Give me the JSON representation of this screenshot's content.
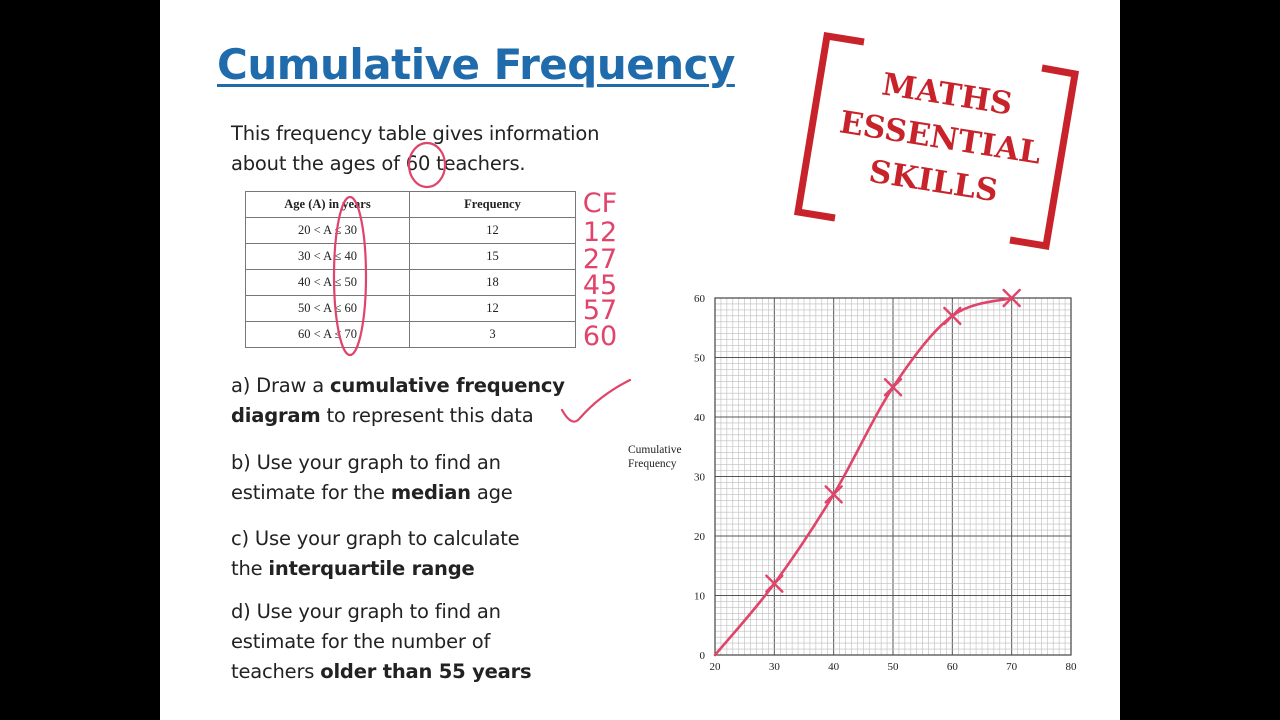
{
  "title": "Cumulative Frequency",
  "intro": {
    "line1": "This frequency table gives information",
    "line2a": "about the ages of ",
    "line2_num": "60",
    "line2b": " teachers."
  },
  "table": {
    "headers": [
      "Age (A) in years",
      "Frequency"
    ],
    "rows": [
      [
        "20 < A ≤ 30",
        "12"
      ],
      [
        "30 < A ≤ 40",
        "15"
      ],
      [
        "40 < A ≤ 50",
        "18"
      ],
      [
        "50 < A ≤ 60",
        "12"
      ],
      [
        "60 < A ≤ 70",
        "3"
      ]
    ]
  },
  "handwritten": {
    "cf_header": "CF",
    "cf_values": [
      "12",
      "27",
      "45",
      "57",
      "60"
    ],
    "color": "#e0446a"
  },
  "questions": {
    "a": {
      "pre": "a) Draw a ",
      "bold": "cumulative frequency",
      "bold2": "diagram",
      "post": " to represent this data"
    },
    "b": {
      "line1": "b) Use your graph to find an",
      "pre": "estimate for the ",
      "bold": "median",
      "post": " age"
    },
    "c": {
      "line1": "c) Use your graph to calculate",
      "pre": "the ",
      "bold": "interquartile range"
    },
    "d": {
      "line1": "d) Use your graph to find an",
      "line2": "estimate for the number of",
      "pre": "teachers ",
      "bold": "older than 55 years"
    }
  },
  "logo": {
    "lines": [
      "MATHS",
      "ESSENTIAL",
      "SKILLS"
    ],
    "color": "#c8232b"
  },
  "colors": {
    "title": "#1f6bab",
    "ink": "#e0446a",
    "grid": "#9a9a9a"
  },
  "chart_data": {
    "type": "line",
    "ylabel_lines": [
      "Cumulative",
      "Frequency"
    ],
    "x_ticks": [
      20,
      30,
      40,
      50,
      60,
      70,
      80
    ],
    "y_ticks": [
      0,
      10,
      20,
      30,
      40,
      50,
      60
    ],
    "xlim": [
      20,
      80
    ],
    "ylim": [
      0,
      60
    ],
    "grid": true,
    "series": [
      {
        "points": [
          [
            20,
            0
          ],
          [
            30,
            12
          ],
          [
            40,
            27
          ],
          [
            50,
            45
          ],
          [
            60,
            57
          ],
          [
            70,
            60
          ]
        ]
      }
    ]
  }
}
